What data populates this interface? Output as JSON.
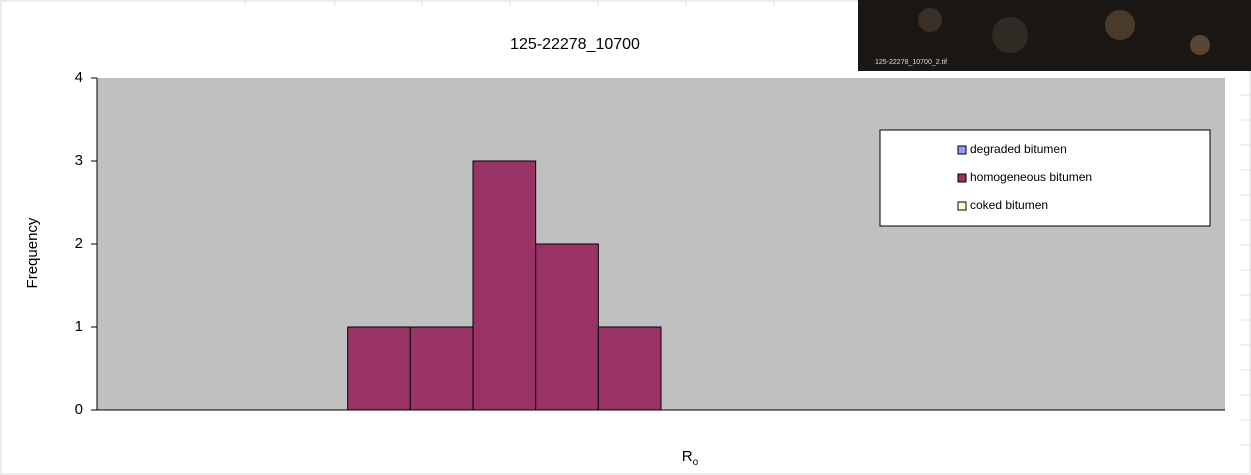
{
  "chart_data": {
    "type": "bar",
    "stacked": true,
    "title": "125-22278_10700",
    "y_label": "Frequency",
    "x_label": "R",
    "x_label_subscript": "o",
    "categories": [
      null,
      null,
      null,
      null,
      null,
      null,
      null,
      null,
      null,
      null,
      null,
      null,
      null,
      null,
      null,
      null,
      null,
      null
    ],
    "series": [
      {
        "name": "degraded bitumen",
        "color": "#9999ff",
        "values": [
          0,
          0,
          0,
          0,
          0,
          0,
          0,
          0,
          0,
          0,
          0,
          0,
          0,
          0,
          0,
          0,
          0,
          0
        ]
      },
      {
        "name": "homogeneous bitumen",
        "color": "#993366",
        "values": [
          0,
          0,
          0,
          0,
          1,
          1,
          3,
          2,
          1,
          0,
          0,
          0,
          0,
          0,
          0,
          0,
          0,
          0
        ]
      },
      {
        "name": "coked bitumen",
        "color": "#ffffcc",
        "values": [
          0,
          0,
          0,
          0,
          0,
          0,
          0,
          0,
          0,
          0,
          0,
          0,
          0,
          0,
          0,
          0,
          0,
          0
        ]
      }
    ],
    "ylim": [
      0,
      4
    ],
    "yticks": [
      0,
      1,
      2,
      3,
      4
    ],
    "grid": false,
    "legend": "upper right",
    "plot_color": "#c0c0c0"
  },
  "photo": {
    "caption": "125-22278_10700_2.tif"
  }
}
